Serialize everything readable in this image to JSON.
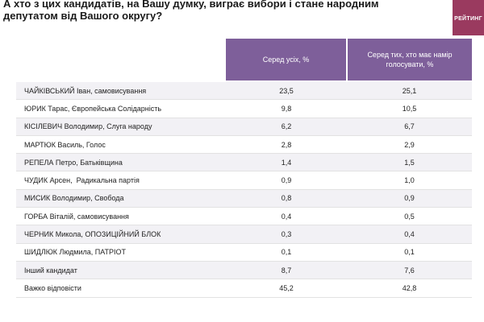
{
  "title": "А хто з цих кандидатів, на Вашу думку, виграє вибори і стане народним депутатом від Вашого округу?",
  "brand": "РЕЙТИНГ",
  "colors": {
    "header_bg": "#7e5f9a",
    "brand_bg": "#9a3a5f"
  },
  "columns": [
    "Серед усіх, %",
    "Серед тих, хто має намір голосувати, %"
  ],
  "rows": [
    {
      "name": "ЧАЙКІВСЬКИЙ Іван, самовисування",
      "all": "23,5",
      "voters": "25,1"
    },
    {
      "name": "ЮРИК Тарас, Європейська Солідарність",
      "all": "9,8",
      "voters": "10,5"
    },
    {
      "name": "КІСІЛЕВИЧ Володимир, Слуга народу",
      "all": "6,2",
      "voters": "6,7"
    },
    {
      "name": "МАРТЮК Василь, Голос",
      "all": "2,8",
      "voters": "2,9"
    },
    {
      "name": "РЕПЕЛА Петро, Батьківщина",
      "all": "1,4",
      "voters": "1,5"
    },
    {
      "name": "ЧУДИК Арсен,  Радикальна партія",
      "all": "0,9",
      "voters": "1,0"
    },
    {
      "name": "МИСИК Володимир, Свобода",
      "all": "0,8",
      "voters": "0,9"
    },
    {
      "name": "ГОРБА Віталій, самовисування",
      "all": "0,4",
      "voters": "0,5"
    },
    {
      "name": "ЧЕРНИК Микола, ОПОЗИЦІЙНИЙ БЛОК",
      "all": "0,3",
      "voters": "0,4"
    },
    {
      "name": "ШИДЛЮК Людмила, ПАТРІОТ",
      "all": "0,1",
      "voters": "0,1"
    },
    {
      "name": "Інший кандидат",
      "all": "8,7",
      "voters": "7,6"
    },
    {
      "name": "Важко відповісти",
      "all": "45,2",
      "voters": "42,8"
    }
  ]
}
